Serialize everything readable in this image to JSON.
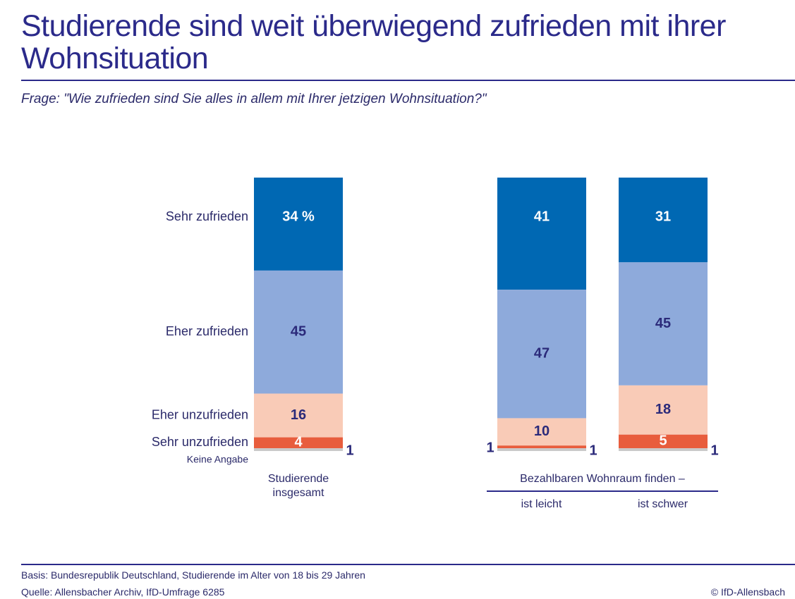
{
  "chart_data": {
    "type": "stacked_bar",
    "title": "Studierende sind weit überwiegend zufrieden mit ihrer Wohnsituation",
    "subtitle": "Frage: \"Wie zufrieden sind Sie alles in allem mit Ihrer jetzigen Wohnsituation?\"",
    "categories": [
      "Studierende insgesamt",
      "ist leicht",
      "ist schwer"
    ],
    "group_label": "Bezahlbaren Wohnraum finden –",
    "series": [
      {
        "name": "Sehr zufrieden",
        "color": "#0068b3",
        "values": [
          34,
          41,
          31
        ],
        "value_labels": [
          "34 %",
          "41",
          "31"
        ]
      },
      {
        "name": "Eher zufrieden",
        "color": "#8eaadb",
        "values": [
          45,
          47,
          45
        ]
      },
      {
        "name": "Eher unzufrieden",
        "color": "#f9cbb7",
        "values": [
          16,
          10,
          18
        ]
      },
      {
        "name": "Sehr unzufrieden",
        "color": "#e85d3d",
        "values": [
          4,
          1,
          5
        ]
      },
      {
        "name": "Keine Angabe",
        "color": "#c9c9c9",
        "values": [
          1,
          1,
          1
        ]
      }
    ],
    "footnotes": [
      "Basis: Bundesrepublik Deutschland, Studierende im Alter von 18 bis 29 Jahren",
      "Quelle: Allensbacher Archiv, IfD-Umfrage 6285"
    ],
    "copyright": "© IfD-Allensbach"
  }
}
